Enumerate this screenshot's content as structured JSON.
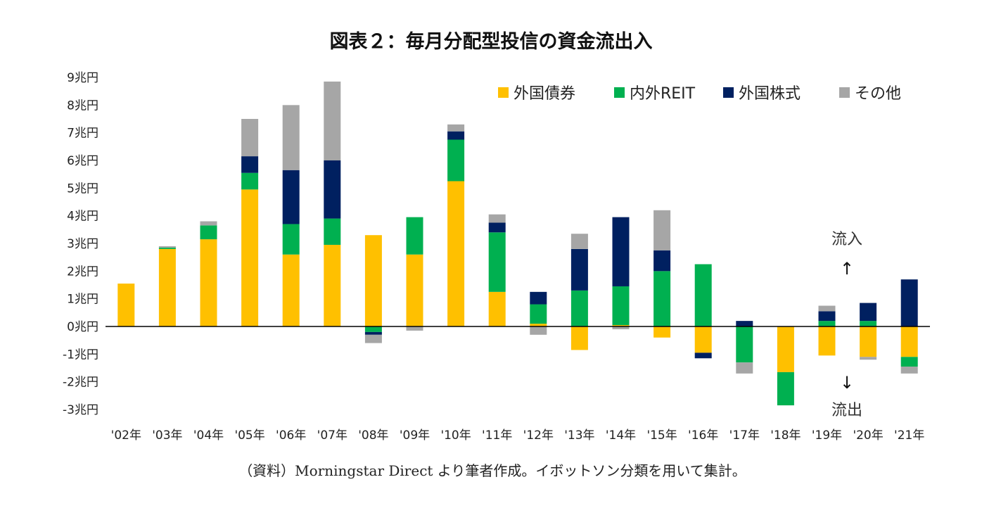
{
  "chart_data": {
    "type": "bar",
    "stacked": true,
    "title": "図表２：毎月分配型投信の資金流出入",
    "source_note": "（資料）Morningstar Direct より筆者作成。イボットソン分類を用いて集計。",
    "xlabel": "",
    "ylabel": "",
    "ylim": [
      -3,
      9
    ],
    "yticks": [
      {
        "value": 9,
        "label": "9兆円"
      },
      {
        "value": 8,
        "label": "8兆円"
      },
      {
        "value": 7,
        "label": "7兆円"
      },
      {
        "value": 6,
        "label": "6兆円"
      },
      {
        "value": 5,
        "label": "5兆円"
      },
      {
        "value": 4,
        "label": "4兆円"
      },
      {
        "value": 3,
        "label": "3兆円"
      },
      {
        "value": 2,
        "label": "2兆円"
      },
      {
        "value": 1,
        "label": "1兆円"
      },
      {
        "value": 0,
        "label": "0兆円"
      },
      {
        "value": -1,
        "label": "-1兆円"
      },
      {
        "value": -2,
        "label": "-2兆円"
      },
      {
        "value": -3,
        "label": "-3兆円"
      }
    ],
    "categories": [
      "'02年",
      "'03年",
      "'04年",
      "'05年",
      "'06年",
      "'07年",
      "'08年",
      "'09年",
      "'10年",
      "'11年",
      "'12年",
      "'13年",
      "'14年",
      "'15年",
      "'16年",
      "'17年",
      "'18年",
      "'19年",
      "'20年",
      "'21年"
    ],
    "series": [
      {
        "name": "外国債券",
        "color": "#FFC000",
        "values": [
          1.55,
          2.8,
          3.15,
          4.95,
          2.6,
          2.95,
          3.3,
          2.6,
          5.25,
          1.25,
          0.1,
          -0.85,
          0.05,
          -0.4,
          -0.95,
          0.0,
          -1.65,
          -1.05,
          -1.1,
          -1.1
        ]
      },
      {
        "name": "内外REIT",
        "color": "#00B050",
        "values": [
          0.0,
          0.05,
          0.5,
          0.6,
          1.1,
          0.95,
          -0.2,
          1.35,
          1.5,
          2.15,
          0.7,
          1.3,
          1.4,
          2.0,
          2.25,
          -1.3,
          -1.2,
          0.2,
          0.2,
          -0.35
        ]
      },
      {
        "name": "外国株式",
        "color": "#002060",
        "values": [
          0.0,
          0.0,
          0.0,
          0.6,
          1.95,
          2.1,
          -0.1,
          0.0,
          0.3,
          0.35,
          0.45,
          1.5,
          2.5,
          0.75,
          -0.2,
          0.2,
          0.0,
          0.35,
          0.65,
          1.7
        ]
      },
      {
        "name": "その他",
        "color": "#A6A6A6",
        "values": [
          0.0,
          0.05,
          0.15,
          1.35,
          2.35,
          2.85,
          -0.3,
          -0.15,
          0.25,
          0.3,
          -0.3,
          0.55,
          -0.1,
          1.45,
          0.0,
          -0.4,
          0.0,
          0.2,
          -0.1,
          -0.25
        ]
      }
    ],
    "legend_position": "top-right",
    "annotations": {
      "inflow_label": "流入",
      "inflow_arrow": "↑",
      "outflow_arrow": "↓",
      "outflow_label": "流出"
    }
  }
}
